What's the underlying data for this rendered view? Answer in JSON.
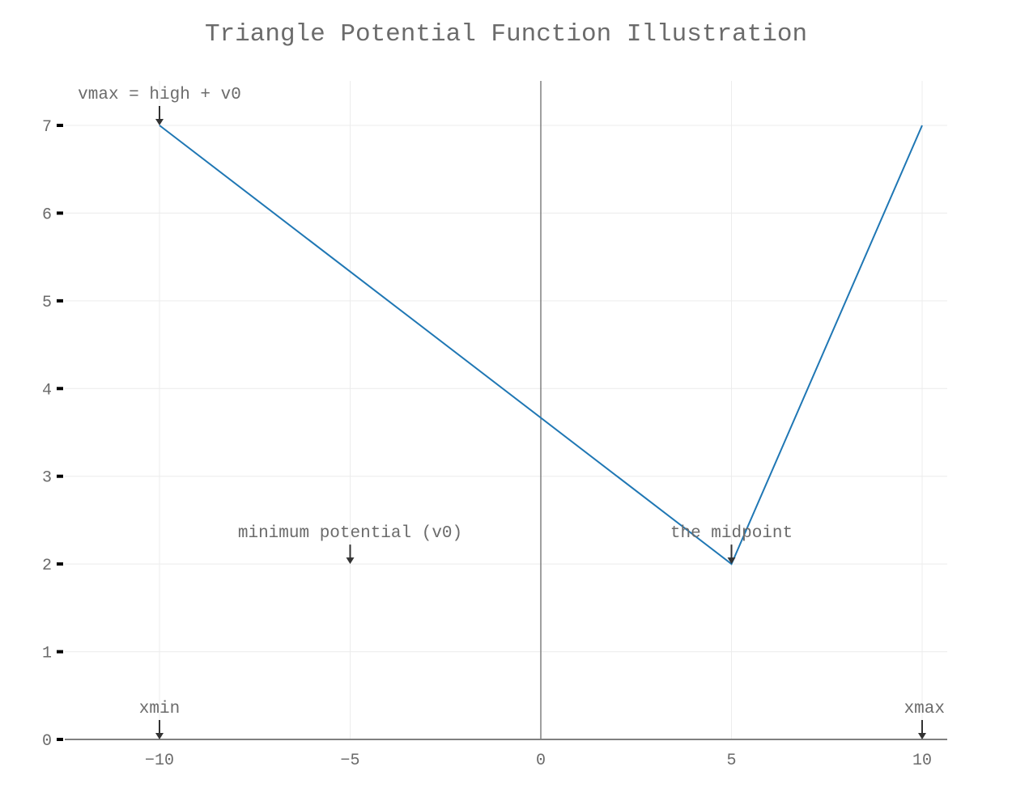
{
  "chart_data": {
    "type": "line",
    "title": "Triangle Potential Function Illustration",
    "xlabel": "",
    "ylabel": "",
    "xlim": [
      -12.5,
      10.75
    ],
    "ylim": [
      0,
      7.5
    ],
    "grid": true,
    "x_ticks": [
      -10,
      -5,
      0,
      5,
      10
    ],
    "x_tick_labels": [
      "−10",
      "−5",
      "0",
      "5",
      "10"
    ],
    "y_ticks": [
      0,
      1,
      2,
      3,
      4,
      5,
      6,
      7
    ],
    "y_tick_labels": [
      "0",
      "1",
      "2",
      "3",
      "4",
      "5",
      "6",
      "7"
    ],
    "series": [
      {
        "x": [
          -10,
          5,
          10
        ],
        "y": [
          7,
          2,
          7
        ],
        "color": "#1f77b4"
      }
    ],
    "annotations": [
      {
        "text": "vmax = high + v0",
        "x": -10,
        "y": 7
      },
      {
        "text": "minimum potential (v0)",
        "x": -5,
        "y": 2
      },
      {
        "text": "the midpoint",
        "x": 5,
        "y": 2
      },
      {
        "text": "xmin",
        "x": -10,
        "y": 0
      },
      {
        "text": "xmax",
        "x": 10,
        "y": 0
      }
    ]
  }
}
